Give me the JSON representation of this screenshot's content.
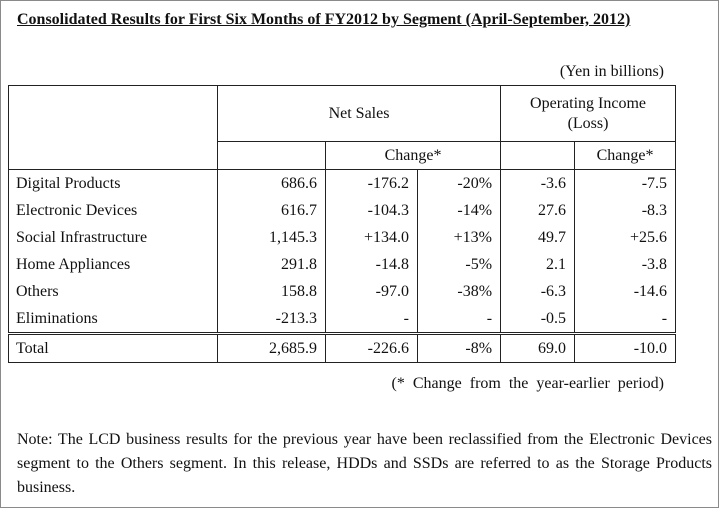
{
  "title": "Consolidated Results for First Six Months of FY2012 by Segment (April-September, 2012)",
  "unit": "(Yen in billions)",
  "headers": {
    "net_sales": "Net Sales",
    "operating_income_line1": "Operating Income",
    "operating_income_line2": "(Loss)",
    "change_ns": "Change*",
    "change_oi": "Change*"
  },
  "rows": [
    {
      "segment": "Digital Products",
      "net_sales": "686.6",
      "ns_change": "-176.2",
      "ns_change_pct": "-20%",
      "oi": "-3.6",
      "oi_change": "-7.5"
    },
    {
      "segment": "Electronic Devices",
      "net_sales": "616.7",
      "ns_change": "-104.3",
      "ns_change_pct": "-14%",
      "oi": "27.6",
      "oi_change": "-8.3"
    },
    {
      "segment": "Social Infrastructure",
      "net_sales": "1,145.3",
      "ns_change": "+134.0",
      "ns_change_pct": "+13%",
      "oi": "49.7",
      "oi_change": "+25.6"
    },
    {
      "segment": "Home Appliances",
      "net_sales": "291.8",
      "ns_change": "-14.8",
      "ns_change_pct": "-5%",
      "oi": "2.1",
      "oi_change": "-3.8"
    },
    {
      "segment": "Others",
      "net_sales": "158.8",
      "ns_change": "-97.0",
      "ns_change_pct": "-38%",
      "oi": "-6.3",
      "oi_change": "-14.6"
    },
    {
      "segment": "Eliminations",
      "net_sales": "-213.3",
      "ns_change": "-",
      "ns_change_pct": "-",
      "oi": "-0.5",
      "oi_change": "-"
    }
  ],
  "total": {
    "segment": "Total",
    "net_sales": "2,685.9",
    "ns_change": "-226.6",
    "ns_change_pct": "-8%",
    "oi": "69.0",
    "oi_change": "-10.0"
  },
  "footnote": "(* Change from the year-earlier period)",
  "note": "Note: The LCD business results for the previous year have been reclassified from the Electronic Devices segment to the Others segment. In this release, HDDs and SSDs are referred to as the Storage Products business."
}
